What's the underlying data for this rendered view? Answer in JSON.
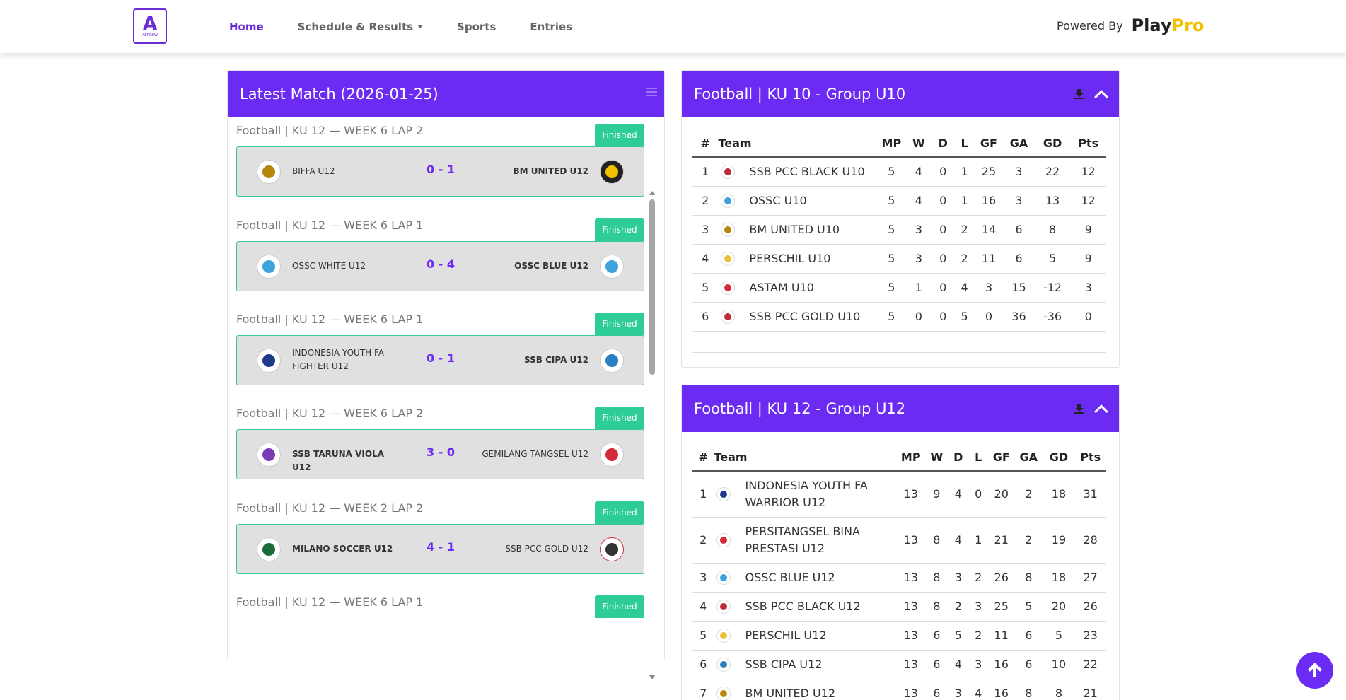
{
  "header": {
    "logo_text": "AERDEW",
    "nav": [
      {
        "label": "Home",
        "active": true
      },
      {
        "label": "Schedule & Results",
        "dropdown": true
      },
      {
        "label": "Sports"
      },
      {
        "label": "Entries"
      }
    ],
    "powered_label": "Powered By",
    "brand_play": "Play",
    "brand_pro": "Pro"
  },
  "latest": {
    "title": "Latest Match (2026-01-25)",
    "matches": [
      {
        "label": "Football | KU 12 — WEEK 6 LAP 2",
        "status": "Finished",
        "home": "BIFFA U12",
        "score": "0 - 1",
        "away": "BM UNITED U12"
      },
      {
        "label": "Football | KU 12 — WEEK 6 LAP 1",
        "status": "Finished",
        "home": "OSSC WHITE U12",
        "score": "0 - 4",
        "away": "OSSC BLUE U12"
      },
      {
        "label": "Football | KU 12 — WEEK 6 LAP 1",
        "status": "Finished",
        "home": "INDONESIA YOUTH FA FIGHTER U12",
        "score": "0 - 1",
        "away": "SSB CIPA U12"
      },
      {
        "label": "Football | KU 12 — WEEK 6 LAP 2",
        "status": "Finished",
        "home": "SSB TARUNA VIOLA U12",
        "score": "3 - 0",
        "away": "GEMILANG TANGSEL U12"
      },
      {
        "label": "Football | KU 12 — WEEK 2 LAP 2",
        "status": "Finished",
        "home": "MILANO SOCCER U12",
        "score": "4 - 1",
        "away": "SSB PCC GOLD U12"
      },
      {
        "label": "Football | KU 12 — WEEK 6 LAP 1",
        "status": "Finished"
      }
    ]
  },
  "standings": {
    "columns": [
      "#",
      "Team",
      "MP",
      "W",
      "D",
      "L",
      "GF",
      "GA",
      "GD",
      "Pts"
    ],
    "groups": [
      {
        "title": "Football | KU 10 - Group U10",
        "rows": [
          {
            "pos": "1",
            "team": "SSB PCC BLACK U10",
            "mp": "5",
            "w": "4",
            "d": "0",
            "l": "1",
            "gf": "25",
            "ga": "3",
            "gd": "22",
            "pts": "12"
          },
          {
            "pos": "2",
            "team": "OSSC U10",
            "mp": "5",
            "w": "4",
            "d": "0",
            "l": "1",
            "gf": "16",
            "ga": "3",
            "gd": "13",
            "pts": "12"
          },
          {
            "pos": "3",
            "team": "BM UNITED U10",
            "mp": "5",
            "w": "3",
            "d": "0",
            "l": "2",
            "gf": "14",
            "ga": "6",
            "gd": "8",
            "pts": "9"
          },
          {
            "pos": "4",
            "team": "PERSCHIL U10",
            "mp": "5",
            "w": "3",
            "d": "0",
            "l": "2",
            "gf": "11",
            "ga": "6",
            "gd": "5",
            "pts": "9"
          },
          {
            "pos": "5",
            "team": "ASTAM U10",
            "mp": "5",
            "w": "1",
            "d": "0",
            "l": "4",
            "gf": "3",
            "ga": "15",
            "gd": "-12",
            "pts": "3"
          },
          {
            "pos": "6",
            "team": "SSB PCC GOLD U10",
            "mp": "5",
            "w": "0",
            "d": "0",
            "l": "5",
            "gf": "0",
            "ga": "36",
            "gd": "-36",
            "pts": "0"
          }
        ]
      },
      {
        "title": "Football | KU 12 - Group U12",
        "rows": [
          {
            "pos": "1",
            "team": "INDONESIA YOUTH FA WARRIOR U12",
            "mp": "13",
            "w": "9",
            "d": "4",
            "l": "0",
            "gf": "20",
            "ga": "2",
            "gd": "18",
            "pts": "31"
          },
          {
            "pos": "2",
            "team": "PERSITANGSEL BINA PRESTASI U12",
            "mp": "13",
            "w": "8",
            "d": "4",
            "l": "1",
            "gf": "21",
            "ga": "2",
            "gd": "19",
            "pts": "28"
          },
          {
            "pos": "3",
            "team": "OSSC BLUE U12",
            "mp": "13",
            "w": "8",
            "d": "3",
            "l": "2",
            "gf": "26",
            "ga": "8",
            "gd": "18",
            "pts": "27"
          },
          {
            "pos": "4",
            "team": "SSB PCC BLACK U12",
            "mp": "13",
            "w": "8",
            "d": "2",
            "l": "3",
            "gf": "25",
            "ga": "5",
            "gd": "20",
            "pts": "26"
          },
          {
            "pos": "5",
            "team": "PERSCHIL U12",
            "mp": "13",
            "w": "6",
            "d": "5",
            "l": "2",
            "gf": "11",
            "ga": "6",
            "gd": "5",
            "pts": "23"
          },
          {
            "pos": "6",
            "team": "SSB CIPA U12",
            "mp": "13",
            "w": "6",
            "d": "4",
            "l": "3",
            "gf": "16",
            "ga": "6",
            "gd": "10",
            "pts": "22"
          },
          {
            "pos": "7",
            "team": "BM UNITED U12",
            "mp": "13",
            "w": "6",
            "d": "3",
            "l": "4",
            "gf": "16",
            "ga": "8",
            "gd": "8",
            "pts": "21"
          }
        ]
      }
    ]
  },
  "colors": {
    "accent": "#6c2bf2",
    "finished": "#2ecc96",
    "brand_pro": "#f2c200"
  }
}
